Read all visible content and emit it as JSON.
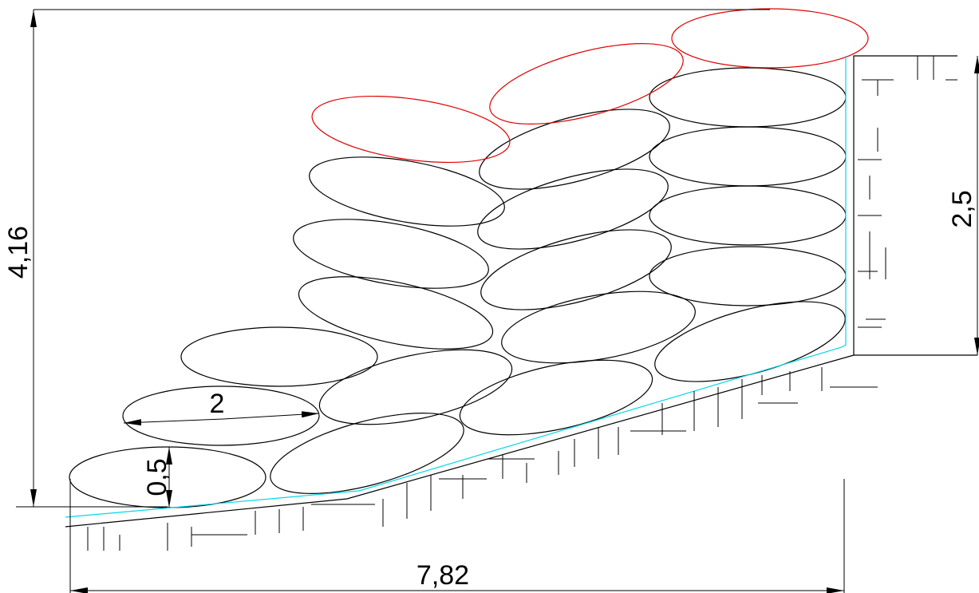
{
  "dimensions": {
    "height": "4,16",
    "wall_height": "2,5",
    "width": "7,82",
    "bag_length": "2",
    "bag_thickness": "0,5"
  }
}
